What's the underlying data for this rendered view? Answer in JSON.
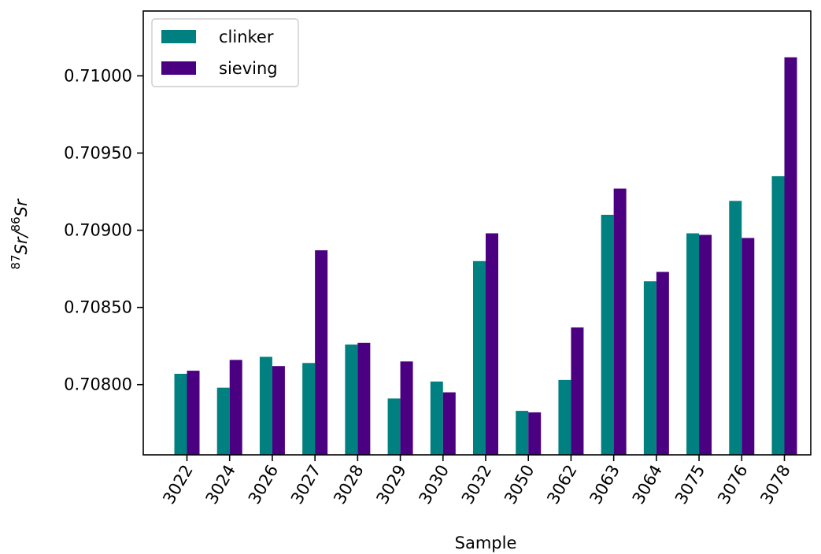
{
  "chart_data": {
    "type": "bar",
    "title": "",
    "xlabel": "Sample",
    "ylabel": {
      "sup1": "87",
      "mid1": "Sr/",
      "sup2": "86",
      "mid2": "Sr"
    },
    "categories": [
      "3022",
      "3024",
      "3026",
      "3027",
      "3028",
      "3029",
      "3030",
      "3032",
      "3050",
      "3062",
      "3063",
      "3064",
      "3075",
      "3076",
      "3078"
    ],
    "series": [
      {
        "name": "clinker",
        "color": "#008080",
        "values": [
          0.70807,
          0.70798,
          0.70818,
          0.70814,
          0.70826,
          0.70791,
          0.70802,
          0.7088,
          0.70783,
          0.70803,
          0.7091,
          0.70867,
          0.70898,
          0.70919,
          0.70935
        ]
      },
      {
        "name": "sieving",
        "color": "#4b0082",
        "values": [
          0.70809,
          0.70816,
          0.70812,
          0.70887,
          0.70827,
          0.70815,
          0.70795,
          0.70898,
          0.70782,
          0.70837,
          0.70927,
          0.70873,
          0.70897,
          0.70895,
          0.71012
        ]
      }
    ],
    "ylim": [
      0.707545,
      0.71042
    ],
    "yticks": [
      "0.70800",
      "0.70850",
      "0.70900",
      "0.70950",
      "0.71000"
    ],
    "grid": false,
    "legend_position": "top-left"
  }
}
